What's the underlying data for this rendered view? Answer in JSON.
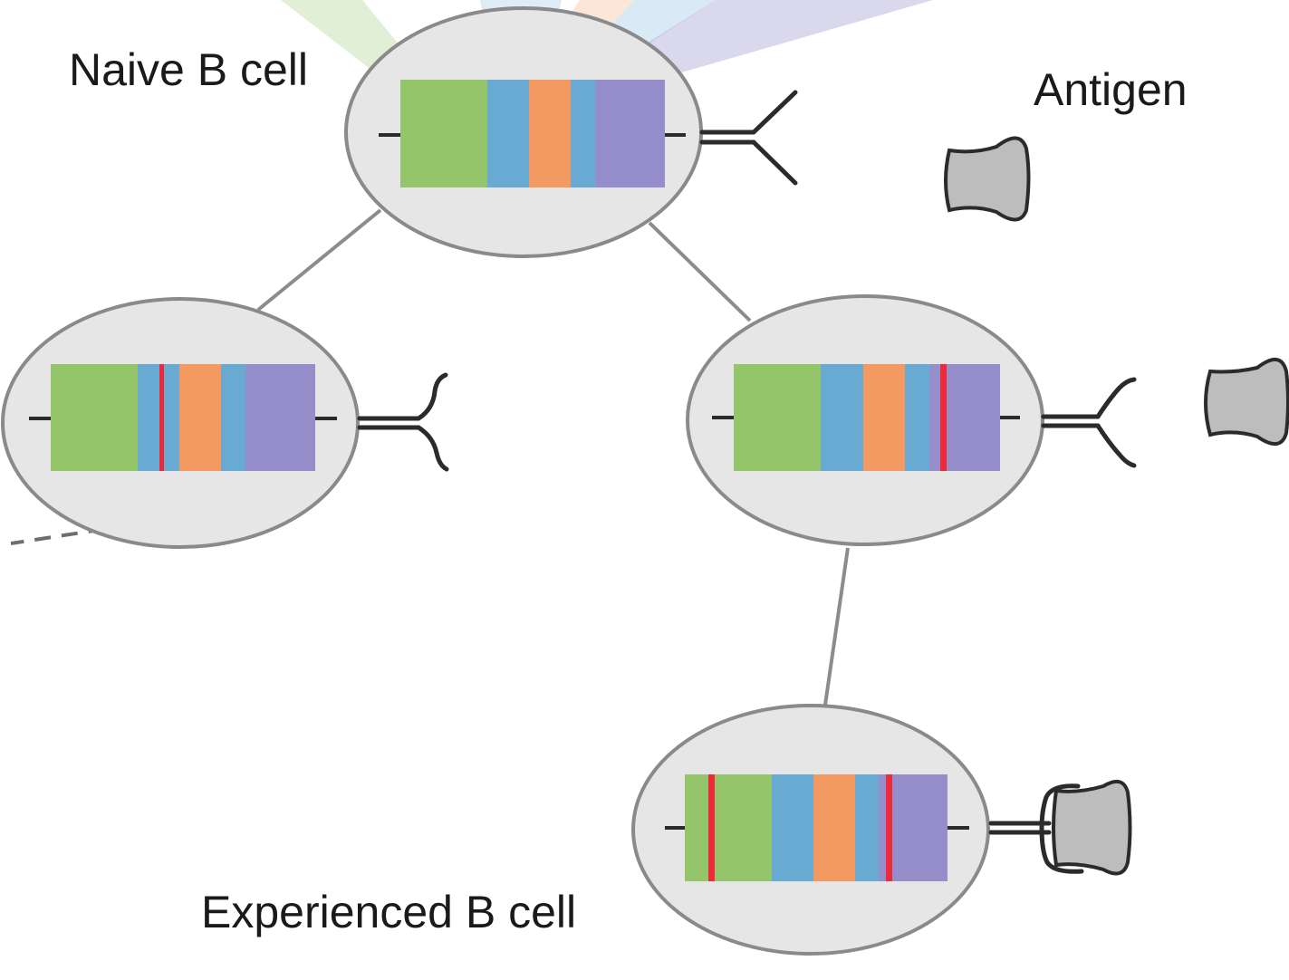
{
  "labels": {
    "naive": "Naive B cell",
    "antigen": "Antigen",
    "experienced": "Experienced B cell"
  },
  "colors": {
    "v_segment": "#94c56a",
    "d_segment": "#68aad2",
    "j_segment": "#f29a62",
    "c_segment": "#968ecb",
    "mutation": "#ee2a3a",
    "cell_fill": "#e6e6e6",
    "cell_outline": "#8a8a8a",
    "antigen_fill": "#bdbdbd"
  },
  "cells": [
    {
      "id": "naive",
      "mutations": 0,
      "receptor": "free"
    },
    {
      "id": "left-daughter",
      "mutations": 1,
      "receptor": "free"
    },
    {
      "id": "right-daughter",
      "mutations": 1,
      "receptor": "free"
    },
    {
      "id": "experienced",
      "mutations": 2,
      "receptor": "antigen-bound"
    }
  ]
}
